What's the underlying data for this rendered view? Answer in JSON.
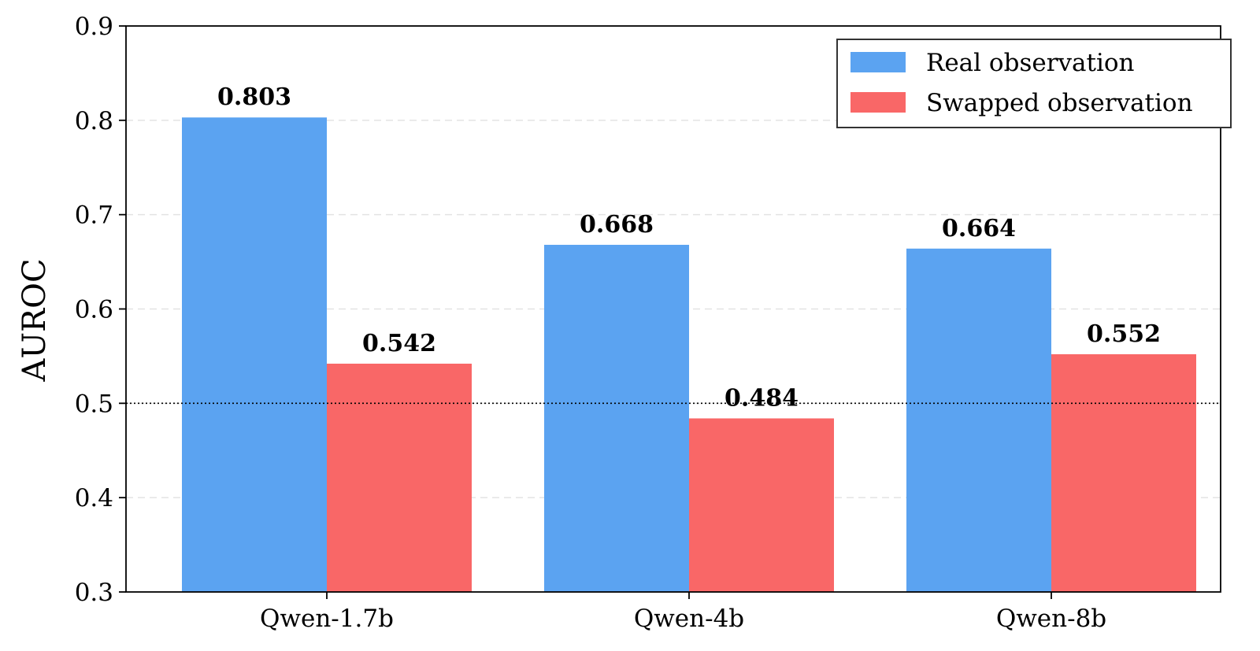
{
  "chart_data": {
    "type": "bar",
    "title": "",
    "xlabel": "",
    "ylabel": "AUROC",
    "ylim": [
      0.3,
      0.9
    ],
    "yticks": [
      "0.3",
      "0.4",
      "0.5",
      "0.6",
      "0.7",
      "0.8",
      "0.9"
    ],
    "categories": [
      "Qwen-1.7b",
      "Qwen-4b",
      "Qwen-8b"
    ],
    "series": [
      {
        "name": "Real observation",
        "color": "#5ba3f1",
        "values": [
          0.803,
          0.668,
          0.664
        ],
        "labels": [
          "0.803",
          "0.668",
          "0.664"
        ]
      },
      {
        "name": "Swapped observation",
        "color": "#f96767",
        "values": [
          0.542,
          0.484,
          0.552
        ],
        "labels": [
          "0.542",
          "0.484",
          "0.552"
        ]
      }
    ],
    "reference_line": {
      "y": 0.5,
      "style": "dotted",
      "color": "#000000"
    },
    "grid": {
      "y": true,
      "style": "dashed",
      "color": "#e3e3e3"
    },
    "legend": {
      "position": "top-right",
      "entries": [
        "Real observation",
        "Swapped observation"
      ]
    }
  }
}
